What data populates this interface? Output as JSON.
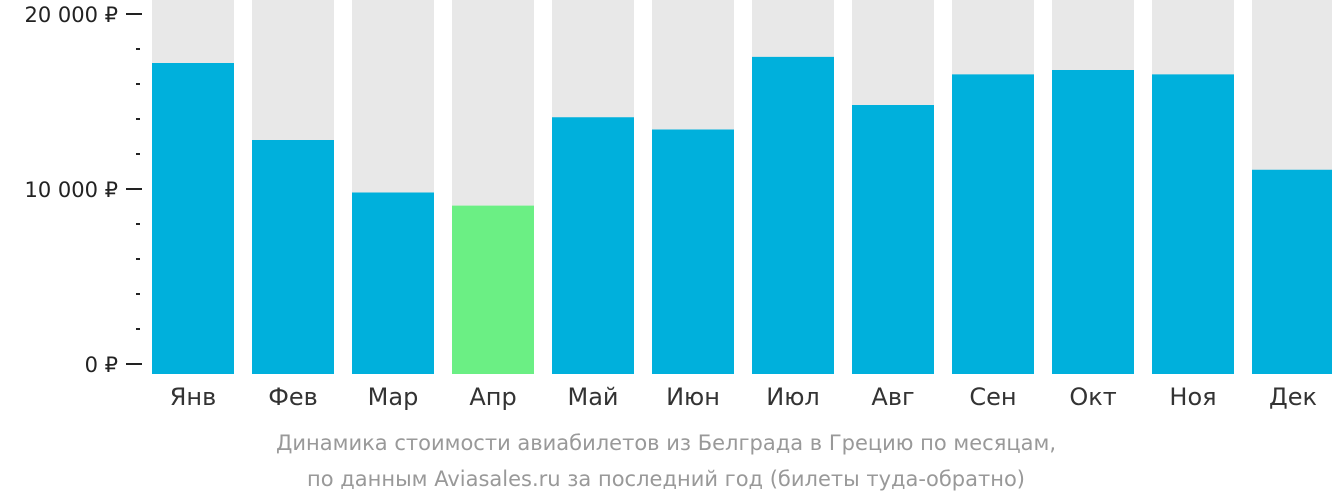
{
  "colors": {
    "bar": "#00b0dc",
    "highlight": "#6bef84",
    "background_bar": "#e8e8e8",
    "axis": "#222222"
  },
  "caption": {
    "line1": "Динамика стоимости авиабилетов из Белграда в Грецию по месяцам,",
    "line2": "по данным Aviasales.ru за последний год (билеты туда-обратно)"
  },
  "chart_data": {
    "type": "bar",
    "categories": [
      "Янв",
      "Фев",
      "Мар",
      "Апр",
      "Май",
      "Июн",
      "Июл",
      "Авг",
      "Сен",
      "Окт",
      "Ноя",
      "Дек"
    ],
    "values": [
      17200,
      12800,
      9800,
      9050,
      14100,
      13400,
      17550,
      14800,
      16550,
      16800,
      16550,
      11100
    ],
    "highlight_index": 3,
    "ylim": [
      0,
      20800
    ],
    "yticks": [
      {
        "value": 0,
        "label": "0 ₽"
      },
      {
        "value": 10000,
        "label": "10 000 ₽"
      },
      {
        "value": 20000,
        "label": "20 000 ₽"
      }
    ],
    "minor_tick_step": 2000,
    "title": "",
    "xlabel": "",
    "ylabel": "",
    "grid": false,
    "legend": "none"
  }
}
